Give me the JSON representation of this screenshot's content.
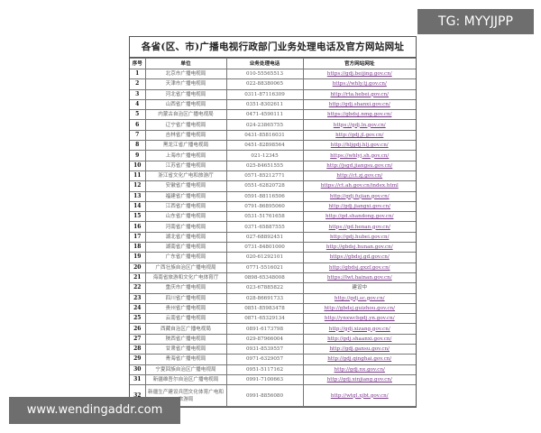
{
  "document": {
    "title": "各省(区、市)广播电视行政部门业务处理电话及官方网站网址",
    "headers": [
      "序号",
      "单位",
      "业务处理电话",
      "官方网站网址"
    ],
    "rows": [
      {
        "no": "1",
        "unit": "北京市广播电视局",
        "phone": "010-55565513",
        "url": "https://gdj.beijing.gov.cn/"
      },
      {
        "no": "2",
        "unit": "天津市广播电视局",
        "phone": "022-88380065",
        "url": "https://whly.tj.gov.cn/"
      },
      {
        "no": "3",
        "unit": "河北省广播电视局",
        "phone": "0311-87116309",
        "url": "http://rta.hebei.gov.cn/"
      },
      {
        "no": "4",
        "unit": "山西省广播电视局",
        "phone": "0351-8302611",
        "url": "http://gdj.shanxi.gov.cn/"
      },
      {
        "no": "5",
        "unit": "内蒙古自治区广播电视局",
        "phone": "0471-4590111",
        "url": "https://gbdsj.nmg.gov.cn/"
      },
      {
        "no": "6",
        "unit": "辽宁省广播电视局",
        "phone": "024-23865755",
        "url": "https://gdj.ln.gov.cn/"
      },
      {
        "no": "7",
        "unit": "吉林省广播电视局",
        "phone": "0431-85816031",
        "url": "http://gdj.jl.gov.cn/"
      },
      {
        "no": "8",
        "unit": "黑龙江省广播电视局",
        "phone": "0451-82898564",
        "url": "http://hljgdj.hlj.gov.cn/"
      },
      {
        "no": "9",
        "unit": "上海市广播电视局",
        "phone": "021-12345",
        "url": "https://whlyj.sh.gov.cn/"
      },
      {
        "no": "10",
        "unit": "江苏省广播电视局",
        "phone": "025-84651555",
        "url": "http://jsgd.jiangsu.gov.cn/"
      },
      {
        "no": "11",
        "unit": "浙江省文化广电和旅游厅",
        "phone": "0571-85212771",
        "url": "http://ct.zj.gov.cn/"
      },
      {
        "no": "12",
        "unit": "安徽省广播电视局",
        "phone": "0551-62820728",
        "url": "https://ct.ah.gov.cn/index.html"
      },
      {
        "no": "13",
        "unit": "福建省广播电视局",
        "phone": "0591-88116506",
        "url": "http://gdj.fujian.gov.cn/"
      },
      {
        "no": "14",
        "unit": "江西省广播电视局",
        "phone": "0791-86895060",
        "url": "http://gdj.jiangxi.gov.cn/"
      },
      {
        "no": "15",
        "unit": "山东省广播电视局",
        "phone": "0531-51761658",
        "url": "http://gd.shandong.gov.cn/"
      },
      {
        "no": "16",
        "unit": "河南省广播电视局",
        "phone": "0371-65887555",
        "url": "https://gd.henan.gov.cn/"
      },
      {
        "no": "17",
        "unit": "湖北省广播电视局",
        "phone": "027-68892451",
        "url": "http://gdj.hubei.gov.cn/"
      },
      {
        "no": "18",
        "unit": "湖南省广播电视局",
        "phone": "0731-84801000",
        "url": "http://gbdsj.hunan.gov.cn/"
      },
      {
        "no": "19",
        "unit": "广东省广播电视局",
        "phone": "020-61292101",
        "url": "https://gbdsj.gd.gov.cn/"
      },
      {
        "no": "20",
        "unit": "广西壮族自治区广播电视局",
        "phone": "0771-5516021",
        "url": "http://gbdsj.gxzf.gov.cn/"
      },
      {
        "no": "21",
        "unit": "海南省旅游和文化广电体育厅",
        "phone": "0898-65348008",
        "url": "https://lwt.hainan.gov.cn/"
      },
      {
        "no": "22",
        "unit": "重庆市广播电视局",
        "phone": "023-67885822",
        "url": "建设中"
      },
      {
        "no": "23",
        "unit": "四川省广播电视局",
        "phone": "028-86691733",
        "url": "http://gdj.sc.gov.cn/"
      },
      {
        "no": "24",
        "unit": "贵州省广播电视局",
        "phone": "0851-85983478",
        "url": "http://gbdsj.guizhou.gov.cn/"
      },
      {
        "no": "25",
        "unit": "云南省广播电视局",
        "phone": "0871-65329134",
        "url": "http://ynxwcbgdj.yn.gov.cn/"
      },
      {
        "no": "26",
        "unit": "西藏自治区广播电视局",
        "phone": "0891-6173798",
        "url": "http://gdj.xizang.gov.cn/"
      },
      {
        "no": "27",
        "unit": "陕西省广播电视局",
        "phone": "029-87966004",
        "url": "http://gdj.shaanxi.gov.cn/"
      },
      {
        "no": "28",
        "unit": "甘肃省广播电视局",
        "phone": "0931-8539557",
        "url": "http://gdj.gansu.gov.cn/"
      },
      {
        "no": "29",
        "unit": "青海省广播电视局",
        "phone": "0971-6329057",
        "url": "http://gdj.qinghai.gov.cn/"
      },
      {
        "no": "30",
        "unit": "宁夏回族自治区广播电视局",
        "phone": "0951-5117162",
        "url": "http://gdj.nx.gov.cn/"
      },
      {
        "no": "31",
        "unit": "新疆维吾尔自治区广播电视局",
        "phone": "0991-7100663",
        "url": "http://gdj.xinjiang.gov.cn/"
      },
      {
        "no": "32",
        "unit": "新疆生产建设兵团文化体育广电和旅游局",
        "phone": "0991-8856080",
        "url": "http://wtgl.xjbt.gov.cn/"
      }
    ]
  },
  "watermarks": {
    "top": "TG: MYYJJPP",
    "bottom": "www.wendingaddr.com"
  }
}
